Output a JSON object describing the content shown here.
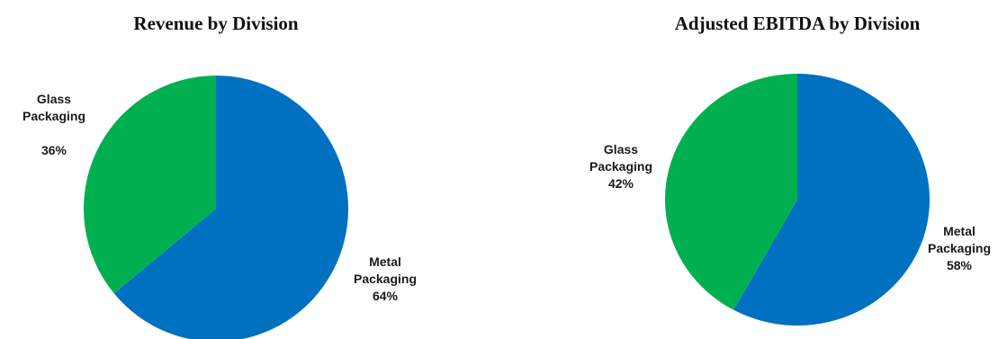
{
  "chart_data": [
    {
      "type": "pie",
      "title": "Revenue by Division",
      "slices": [
        {
          "label_lines": [
            "Metal",
            "Packaging"
          ],
          "value": 64,
          "value_label": "64%",
          "color": "#0070C0"
        },
        {
          "label_lines": [
            "Glass",
            "Packaging"
          ],
          "value": 36,
          "value_label": "36%",
          "color": "#00B050"
        }
      ],
      "start": "12 o'clock",
      "direction": "clockwise"
    },
    {
      "type": "pie",
      "title": "Adjusted EBITDA by Division",
      "slices": [
        {
          "label_lines": [
            "Metal",
            "Packaging"
          ],
          "value": 58,
          "value_label": "58%",
          "color": "#0070C0"
        },
        {
          "label_lines": [
            "Glass",
            "Packaging"
          ],
          "value": 42,
          "value_label": "42%",
          "color": "#00B050"
        }
      ],
      "start": "12 o'clock",
      "direction": "clockwise"
    }
  ]
}
